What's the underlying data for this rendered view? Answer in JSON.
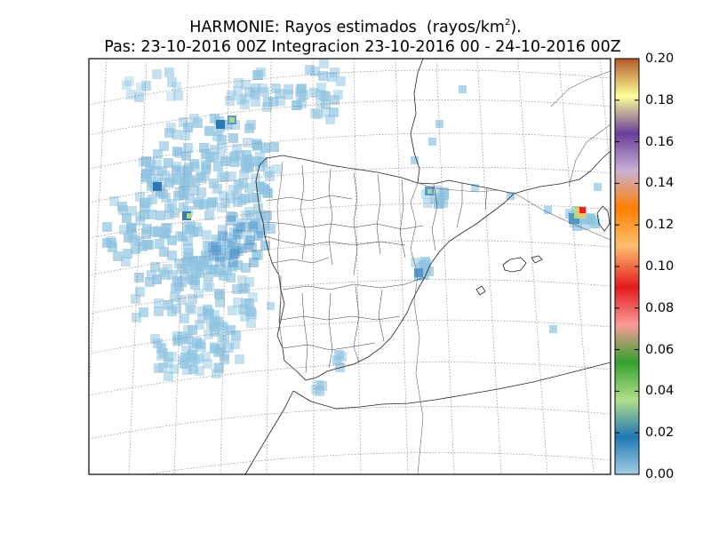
{
  "title": {
    "model": "HARMONIE: Rayos estimados",
    "unit_prefix": "(rayos/km",
    "unit_exp": "2",
    "unit_suffix": ").",
    "line2": "Pas: 23-10-2016 00Z Integracion 23-10-2016 00 - 24-10-2016 00Z"
  },
  "colorbar": {
    "ticks": [
      "0.00",
      "0.02",
      "0.04",
      "0.06",
      "0.08",
      "0.10",
      "0.12",
      "0.14",
      "0.16",
      "0.18",
      "0.20"
    ],
    "range": [
      0,
      0.2
    ],
    "colors": [
      "#a6cee3",
      "#1f78b4",
      "#b2df8a",
      "#33a02c",
      "#fb9a99",
      "#e31a1c",
      "#fdbf6f",
      "#ff7f00",
      "#cab2d6",
      "#6a3d9a",
      "#ffff99",
      "#b15928"
    ]
  },
  "map": {
    "region": "Iberian Peninsula and Atlantic",
    "gridlines": "dashed",
    "lightning_colors": {
      "low": "#8fc3e0",
      "mid": "#4a90c8",
      "high": "#1f6fb0",
      "max": "#e31a1c"
    }
  }
}
